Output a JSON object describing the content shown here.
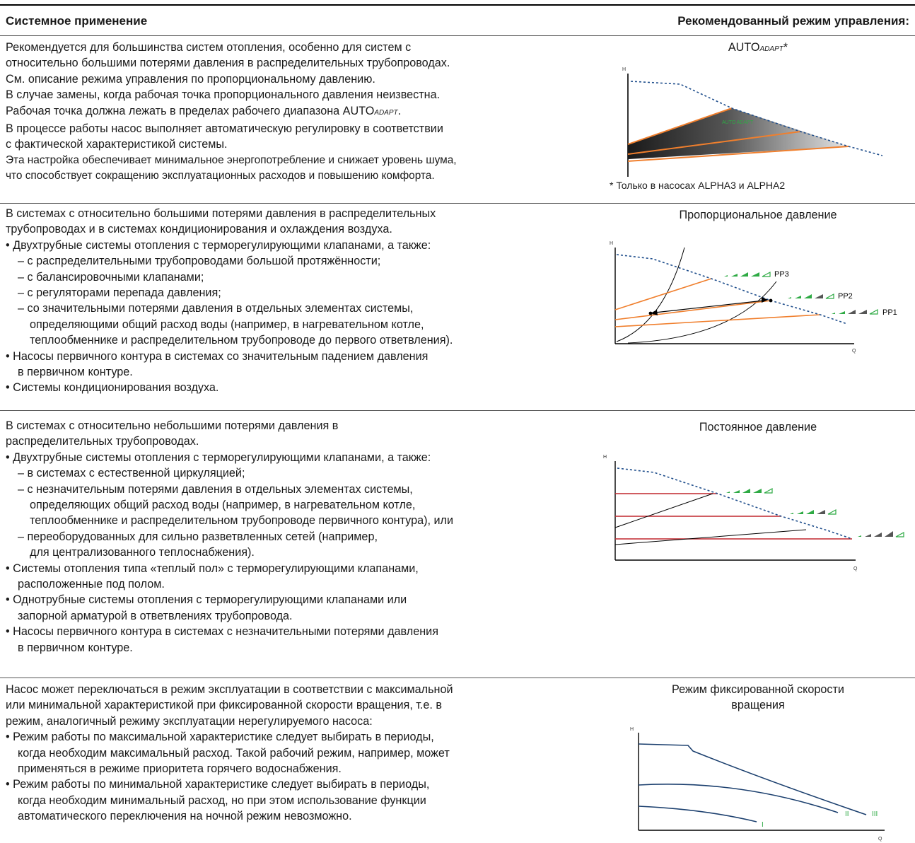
{
  "header": {
    "left": "Системное применение",
    "right": "Рекомендованный режим управления:"
  },
  "rows": [
    {
      "lines": [
        "Рекомендуется для большинства систем отопления, особенно для систем с",
        "относительно большими потерями давления в распределительных трубопроводах.",
        "См. описание режима управления по пропорциональному давлению.",
        "В случае замены, когда рабочая точка пропорционального давления неизвестна.",
        "Рабочая точка должна лежать в пределах рабочего диапазона AUTO",
        "В процессе работы насос выполняет автоматическую регулировку в соответствии",
        "с фактической характеристикой системы.",
        "Эта настройка обеспечивает минимальное энергопотребление и снижает уровень шума,",
        "что способствует сокращению эксплуатационных расходов и повышению комфорта."
      ],
      "line5_sub": "ADAPT",
      "line5_end": ".",
      "chart_title": "AUTO",
      "chart_title_sub": "ADAPT",
      "chart_title_end": "*",
      "footnote": "* Только в насосах ALPHA3 и ALPHA2"
    },
    {
      "lines": [
        "В системах с относительно большими потерями давления в распределительных",
        "трубопроводах и в системах кондиционирования и охлаждения воздуха.",
        "• Двухтрубные системы отопления с терморегулирующими клапанами, а также:",
        "– с распределительными трубопроводами большой протяжённости;",
        "– с балансировочными клапанами;",
        "– с регуляторами перепада давления;",
        "– со значительными потерями давления в отдельных элементах системы,",
        "определяющими общий расход воды (например, в нагревательном котле,",
        "теплообменнике и распределительном трубопроводе до первого ответвления).",
        "• Насосы первичного контура в системах со значительным падением давления",
        "в первичном контуре.",
        "• Системы кондиционирования воздуха."
      ],
      "chart_title": "Пропорциональное давление"
    },
    {
      "lines": [
        "В системах с относительно небольшими потерями давления в",
        "распределительных трубопроводах.",
        "• Двухтрубные системы отопления с терморегулирующими клапанами, а также:",
        "– в системах с естественной циркуляцией;",
        "– с незначительным потерями давления в отдельных элементах системы,",
        "определяющих общий расход воды (например, в нагревательном котле,",
        "теплообменнике и распределительном трубопроводе первичного контура), или",
        "– переоборудованных для сильно разветвленных сетей (например,",
        "для централизованного теплоснабжения).",
        "• Системы отопления типа «теплый пол» с терморегулирующими клапанами,",
        "расположенные под полом.",
        "• Однотрубные системы отопления с терморегулирующими клапанами или",
        "запорной арматурой в ответвлениях трубопровода.",
        "• Насосы первичного контура в системах с незначительными потерями давления",
        "в первичном контуре."
      ],
      "chart_title": "Постоянное давление"
    },
    {
      "lines": [
        "Насос может переключаться в режим эксплуатации в соответствии с максимальной",
        "или минимальной характеристикой при фиксированной скорости вращения, т.е. в",
        "режим, аналогичный режиму эксплуатации нерегулируемого насоса:",
        "• Режим работы по максимальной характеристике следует выбирать в периоды,",
        "когда необходим максимальный расход. Такой рабочий режим, например, может",
        "применяться в режиме приоритета горячего водоснабжения.",
        "• Режим работы по минимальной характеристике следует выбирать в периоды,",
        "когда необходим минимальный расход, но при этом использование функции",
        "автоматического переключения на ночной режим невозможно."
      ],
      "chart_title_lines": [
        "Режим фиксированной скорости",
        "вращения"
      ]
    }
  ],
  "chart_data": [
    {
      "type": "line",
      "title": "AUTO ADAPT",
      "xlabel": "",
      "ylabel": "H",
      "annotations": [
        "AUTO ADAPT"
      ],
      "series": []
    },
    {
      "type": "line",
      "title": "Пропорциональное давление",
      "xlabel": "Q",
      "ylabel": "H",
      "legend": [
        "PP3",
        "PP2",
        "PP1"
      ],
      "series": []
    },
    {
      "type": "line",
      "title": "Постоянное давление",
      "xlabel": "Q",
      "ylabel": "H",
      "series": []
    },
    {
      "type": "line",
      "title": "Режим фиксированной скорости вращения",
      "xlabel": "Q",
      "ylabel": "H",
      "curve_labels": [
        "III",
        "II",
        "I"
      ],
      "series": []
    }
  ],
  "colors": {
    "orange": "#f07f2d",
    "blue_dashed": "#1f4e8c",
    "red": "#c1272d",
    "curve_blue": "#1b3f6e",
    "green": "#2eaa44",
    "gray_bar": "#555555"
  }
}
